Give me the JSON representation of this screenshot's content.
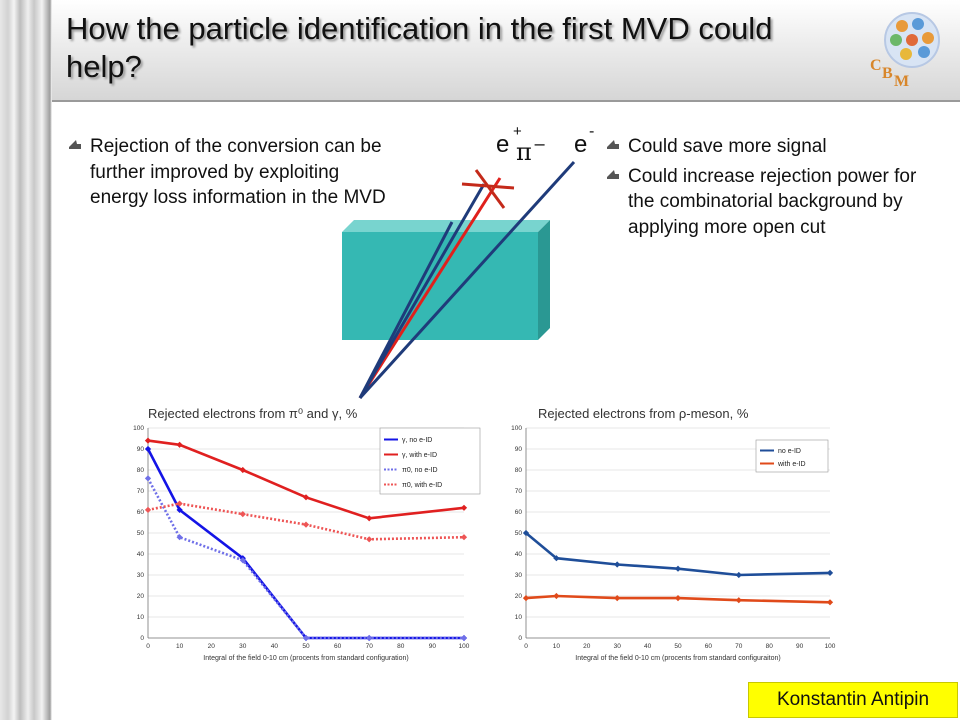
{
  "slide": {
    "title": "How the particle identification in the first MVD could help?",
    "author": "Konstantin Antipin",
    "logo_letters": [
      "C",
      "B",
      "M"
    ]
  },
  "left_bullets": [
    "Rejection of the conversion can be further improved by exploiting energy loss information in the MVD"
  ],
  "right_bullets": [
    "Could save more signal",
    "Could increase rejection power for the combinatorial background by applying more open cut"
  ],
  "diagram": {
    "labels": {
      "e_plus": "e",
      "e_plus_sup": "+",
      "pi_minus": "π",
      "pi_minus_sup": "−",
      "e_minus": "e",
      "e_minus_sup": "-"
    },
    "colors": {
      "detector": "#35b8b3",
      "track_blue": "#1f3b7a",
      "track_red": "#e0201c",
      "cross": "#c42a1a"
    }
  },
  "chart_data": [
    {
      "type": "line",
      "title": "Rejected electrons from π⁰ and γ, %",
      "xlabel": "Integral of the field 0-10 cm (procents from standard configuration)",
      "ylabel": "",
      "x": [
        0,
        10,
        30,
        50,
        70,
        100
      ],
      "xticks": [
        0,
        10,
        20,
        30,
        40,
        50,
        60,
        70,
        80,
        90,
        100
      ],
      "yticks": [
        0,
        10,
        20,
        30,
        40,
        50,
        60,
        70,
        80,
        90,
        100
      ],
      "xlim": [
        0,
        100
      ],
      "ylim": [
        0,
        100
      ],
      "legend_position": "top-right",
      "series": [
        {
          "name": "γ, no e-ID",
          "values": [
            90,
            61,
            38,
            0,
            0,
            0
          ],
          "color": "#1414e6",
          "style": "solid"
        },
        {
          "name": "γ, with e-ID",
          "values": [
            94,
            92,
            80,
            67,
            57,
            62
          ],
          "color": "#e02020",
          "style": "solid"
        },
        {
          "name": "π0, no e-ID",
          "values": [
            76,
            48,
            37,
            0,
            0,
            0
          ],
          "color": "#6f6fe8",
          "style": "dotted"
        },
        {
          "name": "π0, with e-ID",
          "values": [
            61,
            64,
            59,
            54,
            47,
            48
          ],
          "color": "#ee5555",
          "style": "dotted"
        }
      ]
    },
    {
      "type": "line",
      "title": "Rejected electrons from ρ-meson, %",
      "xlabel": "Integral of the field 0-10 cm (procents from standard configuraiton)",
      "ylabel": "",
      "x": [
        0,
        10,
        30,
        50,
        70,
        100
      ],
      "xticks": [
        0,
        10,
        20,
        30,
        40,
        50,
        60,
        70,
        80,
        90,
        100
      ],
      "yticks": [
        0,
        10,
        20,
        30,
        40,
        50,
        60,
        70,
        80,
        90,
        100
      ],
      "xlim": [
        0,
        100
      ],
      "ylim": [
        0,
        100
      ],
      "legend_position": "top-right",
      "series": [
        {
          "name": "no e-ID",
          "values": [
            50,
            38,
            35,
            33,
            30,
            31
          ],
          "color": "#1f4e99",
          "style": "solid"
        },
        {
          "name": "with e-ID",
          "values": [
            19,
            20,
            19,
            19,
            18,
            17
          ],
          "color": "#e04a1a",
          "style": "solid"
        }
      ]
    }
  ]
}
